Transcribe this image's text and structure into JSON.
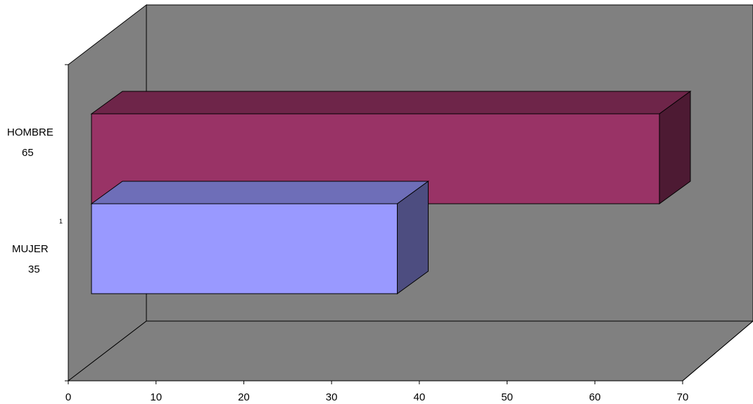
{
  "chart_data": {
    "type": "bar",
    "orientation": "horizontal",
    "style": "3d-clustered",
    "categories": [
      "1"
    ],
    "series": [
      {
        "name": "MUJER\n35",
        "label_line1": "MUJER",
        "label_line2": "35",
        "values": [
          35
        ],
        "color": "#9999FF"
      },
      {
        "name": "HOMBRE\n65",
        "label_line1": "HOMBRE",
        "label_line2": "65",
        "values": [
          65
        ],
        "color": "#993366"
      }
    ],
    "xlim": [
      0,
      70
    ],
    "xticks": [
      "0",
      "10",
      "20",
      "30",
      "40",
      "50",
      "60",
      "70"
    ],
    "grid": false,
    "legend": "none",
    "wall_color": "#808080"
  }
}
